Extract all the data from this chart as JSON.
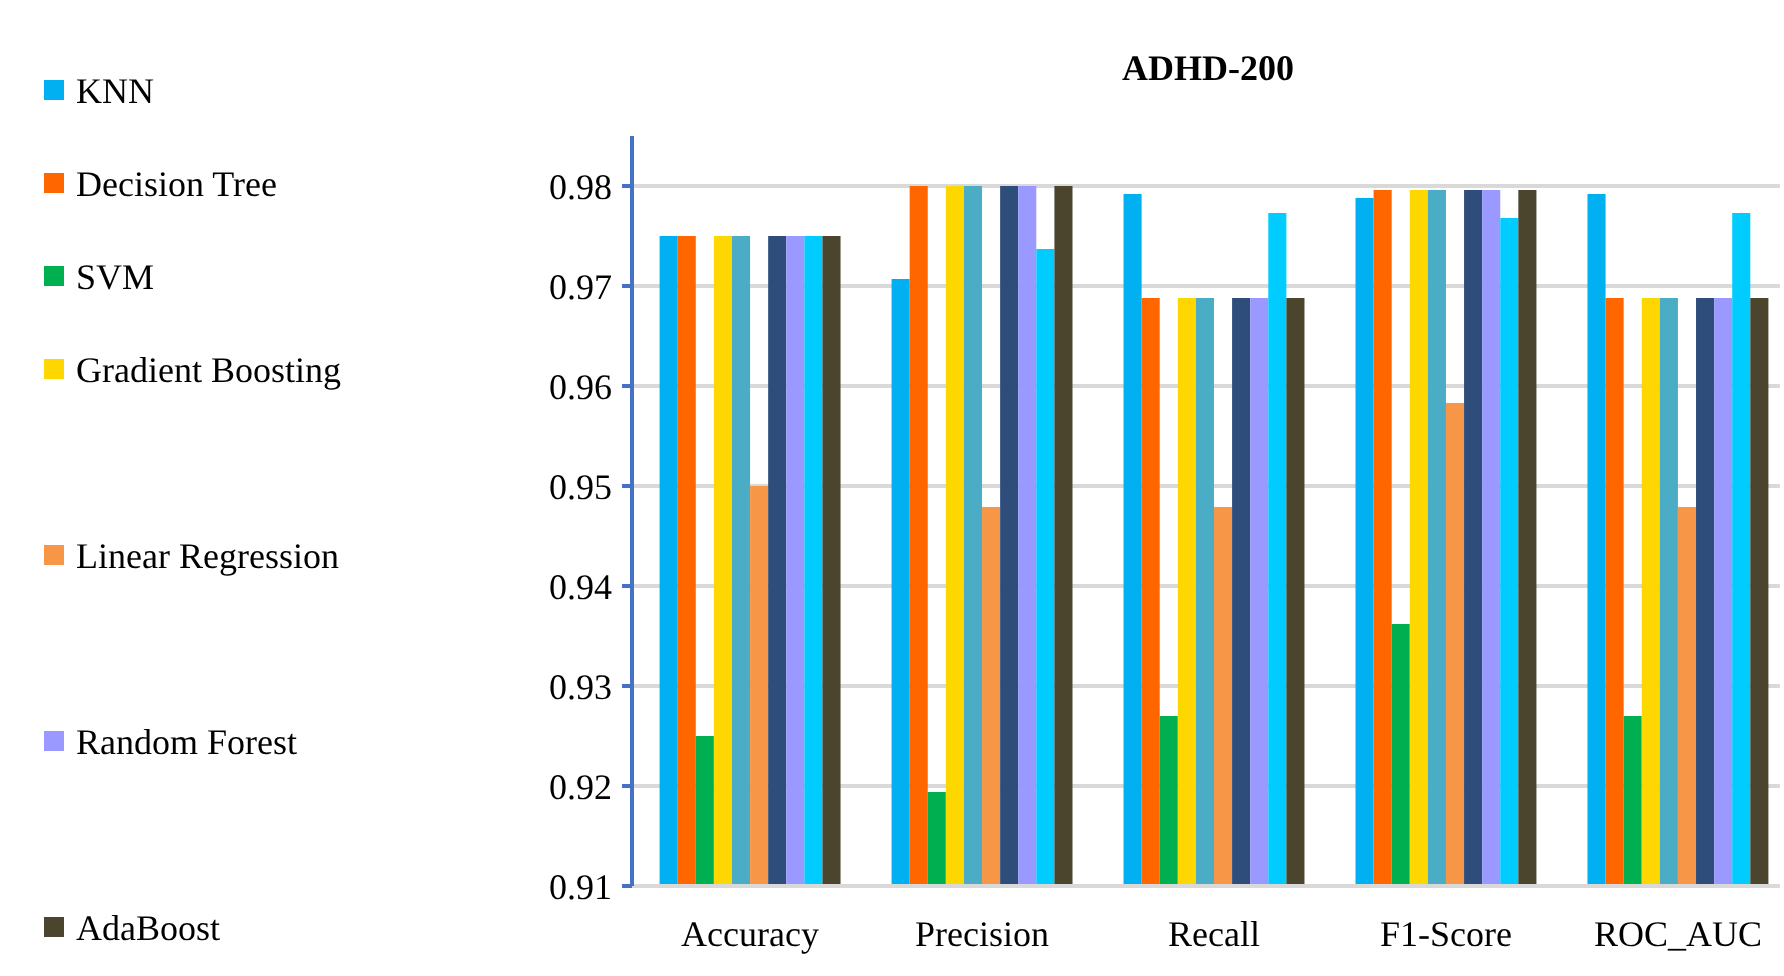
{
  "chart_data": {
    "type": "bar",
    "title": "ADHD-200",
    "categories": [
      "Accuracy",
      "Precision",
      "Recall",
      "F1-Score",
      "ROC_AUC"
    ],
    "series": [
      {
        "name": "KNN",
        "color": "#00b0f0",
        "values": [
          0.975,
          0.9707,
          0.9792,
          0.9788,
          0.9792
        ]
      },
      {
        "name": "Decision Tree",
        "color": "#ff6600",
        "values": [
          0.975,
          0.98,
          0.9688,
          0.9796,
          0.9688
        ]
      },
      {
        "name": "SVM",
        "color": "#00b050",
        "values": [
          0.925,
          0.9194,
          0.927,
          0.9362,
          0.927
        ]
      },
      {
        "name": "Gradient Boosting",
        "color": "#ffd700",
        "values": [
          0.975,
          0.98,
          0.9688,
          0.9796,
          0.9688
        ]
      },
      {
        "color": "#4bacc6",
        "values": [
          0.975,
          0.98,
          0.9688,
          0.9796,
          0.9688
        ]
      },
      {
        "name": "Linear Regression",
        "color": "#f79646",
        "values": [
          0.95,
          0.9479,
          0.9479,
          0.9583,
          0.9479
        ]
      },
      {
        "color": "#2e4d7b",
        "values": [
          0.975,
          0.98,
          0.9688,
          0.9796,
          0.9688
        ]
      },
      {
        "name": "Random Forest",
        "color": "#9999ff",
        "values": [
          0.975,
          0.98,
          0.9688,
          0.9796,
          0.9688
        ]
      },
      {
        "color": "#00ccff",
        "values": [
          0.975,
          0.9737,
          0.9773,
          0.9768,
          0.9773
        ]
      },
      {
        "name": "AdaBoost",
        "color": "#4a452c",
        "values": [
          0.975,
          0.98,
          0.9688,
          0.9796,
          0.9688
        ]
      }
    ],
    "ylim": [
      0.91,
      0.985
    ],
    "yticks": [
      {
        "value": 0.91,
        "label": "0.91"
      },
      {
        "value": 0.92,
        "label": "0.92"
      },
      {
        "value": 0.93,
        "label": "0.93"
      },
      {
        "value": 0.94,
        "label": "0.94"
      },
      {
        "value": 0.95,
        "label": "0.95"
      },
      {
        "value": 0.96,
        "label": "0.96"
      },
      {
        "value": 0.97,
        "label": "0.97"
      },
      {
        "value": 0.98,
        "label": "0.98"
      }
    ],
    "grid": "y",
    "legend": "left"
  }
}
